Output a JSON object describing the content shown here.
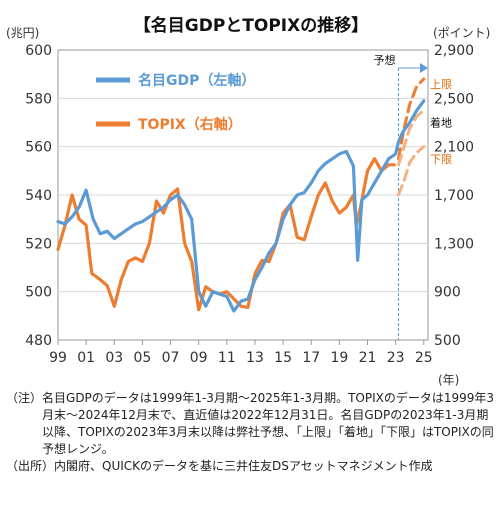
{
  "chart_data": {
    "type": "line",
    "title": "【名目GDPとTOPIXの推移】",
    "left_axis": {
      "unit_label": "(兆円)",
      "ylim": [
        480,
        600
      ],
      "ticks": [
        480,
        500,
        520,
        540,
        560,
        580,
        600
      ]
    },
    "right_axis": {
      "unit_label": "(ポイント)",
      "ylim": [
        500,
        2900
      ],
      "ticks": [
        500,
        900,
        1300,
        1700,
        2100,
        2500,
        2900
      ],
      "tick_labels": [
        "500",
        "900",
        "1,300",
        "1,700",
        "2,100",
        "2,500",
        "2,900"
      ]
    },
    "x_axis": {
      "unit_label": "(年)",
      "xlim": [
        1999,
        2025.3
      ],
      "ticks": [
        "99",
        "01",
        "03",
        "05",
        "07",
        "09",
        "11",
        "13",
        "15",
        "17",
        "19",
        "21",
        "23",
        "25"
      ]
    },
    "forecast_start": 2023.2,
    "forecast_label": "予想",
    "series": [
      {
        "name": "名目GDP（左軸）",
        "axis": "left",
        "color": "#5B9BD5",
        "points": [
          [
            1999.0,
            529
          ],
          [
            1999.5,
            528
          ],
          [
            2000.0,
            531
          ],
          [
            2000.5,
            535
          ],
          [
            2001.0,
            542
          ],
          [
            2001.5,
            530
          ],
          [
            2002.0,
            524
          ],
          [
            2002.5,
            525
          ],
          [
            2003.0,
            522
          ],
          [
            2003.5,
            524
          ],
          [
            2004.0,
            526
          ],
          [
            2004.5,
            528
          ],
          [
            2005.0,
            529
          ],
          [
            2005.5,
            531
          ],
          [
            2006.0,
            533
          ],
          [
            2006.5,
            535
          ],
          [
            2007.0,
            538
          ],
          [
            2007.5,
            540
          ],
          [
            2008.0,
            536
          ],
          [
            2008.5,
            530
          ],
          [
            2009.0,
            500
          ],
          [
            2009.5,
            494
          ],
          [
            2010.0,
            500
          ],
          [
            2010.5,
            499
          ],
          [
            2011.0,
            498
          ],
          [
            2011.5,
            492
          ],
          [
            2012.0,
            496
          ],
          [
            2012.5,
            497
          ],
          [
            2013.0,
            505
          ],
          [
            2013.5,
            510
          ],
          [
            2014.0,
            516
          ],
          [
            2014.5,
            520
          ],
          [
            2015.0,
            530
          ],
          [
            2015.5,
            536
          ],
          [
            2016.0,
            540
          ],
          [
            2016.5,
            541
          ],
          [
            2017.0,
            545
          ],
          [
            2017.5,
            550
          ],
          [
            2018.0,
            553
          ],
          [
            2018.5,
            555
          ],
          [
            2019.0,
            557
          ],
          [
            2019.5,
            558
          ],
          [
            2020.0,
            552
          ],
          [
            2020.3,
            513
          ],
          [
            2020.6,
            538
          ],
          [
            2021.0,
            540
          ],
          [
            2021.5,
            545
          ],
          [
            2022.0,
            550
          ],
          [
            2022.5,
            555
          ],
          [
            2023.0,
            557
          ],
          [
            2023.2,
            562
          ],
          [
            2023.5,
            566
          ],
          [
            2024.0,
            570
          ],
          [
            2024.5,
            575
          ],
          [
            2025.0,
            579
          ]
        ]
      },
      {
        "name": "TOPIX（右軸）",
        "axis": "right",
        "color": "#ED7D31",
        "points": [
          [
            1999.0,
            1250
          ],
          [
            1999.5,
            1450
          ],
          [
            2000.0,
            1700
          ],
          [
            2000.5,
            1500
          ],
          [
            2001.0,
            1450
          ],
          [
            2001.4,
            1050
          ],
          [
            2002.0,
            1000
          ],
          [
            2002.5,
            950
          ],
          [
            2003.0,
            780
          ],
          [
            2003.5,
            1000
          ],
          [
            2004.0,
            1150
          ],
          [
            2004.5,
            1180
          ],
          [
            2005.0,
            1150
          ],
          [
            2005.5,
            1300
          ],
          [
            2006.0,
            1650
          ],
          [
            2006.5,
            1550
          ],
          [
            2007.0,
            1700
          ],
          [
            2007.5,
            1750
          ],
          [
            2008.0,
            1300
          ],
          [
            2008.5,
            1150
          ],
          [
            2009.0,
            750
          ],
          [
            2009.5,
            940
          ],
          [
            2010.0,
            900
          ],
          [
            2010.5,
            880
          ],
          [
            2011.0,
            900
          ],
          [
            2011.5,
            840
          ],
          [
            2012.0,
            780
          ],
          [
            2012.5,
            770
          ],
          [
            2013.0,
            1050
          ],
          [
            2013.5,
            1160
          ],
          [
            2014.0,
            1150
          ],
          [
            2014.5,
            1300
          ],
          [
            2015.0,
            1550
          ],
          [
            2015.5,
            1620
          ],
          [
            2016.0,
            1350
          ],
          [
            2016.5,
            1330
          ],
          [
            2017.0,
            1520
          ],
          [
            2017.5,
            1700
          ],
          [
            2018.0,
            1800
          ],
          [
            2018.5,
            1650
          ],
          [
            2019.0,
            1550
          ],
          [
            2019.5,
            1600
          ],
          [
            2020.0,
            1700
          ],
          [
            2020.2,
            1450
          ],
          [
            2020.5,
            1600
          ],
          [
            2021.0,
            1900
          ],
          [
            2021.5,
            2000
          ],
          [
            2022.0,
            1900
          ],
          [
            2022.5,
            1950
          ],
          [
            2022.9,
            1950
          ]
        ]
      },
      {
        "name": "上限",
        "axis": "right",
        "color": "#ED7D31",
        "dashed": true,
        "points": [
          [
            2023.2,
            2000
          ],
          [
            2023.6,
            2250
          ],
          [
            2024.0,
            2450
          ],
          [
            2024.5,
            2600
          ],
          [
            2025.0,
            2660
          ]
        ]
      },
      {
        "name": "着地",
        "axis": "right",
        "color": "#F4B183",
        "dashed": true,
        "points": [
          [
            2023.2,
            1950
          ],
          [
            2023.6,
            2100
          ],
          [
            2024.0,
            2250
          ],
          [
            2024.5,
            2350
          ],
          [
            2025.0,
            2400
          ]
        ]
      },
      {
        "name": "下限",
        "axis": "right",
        "color": "#F4B183",
        "dashed": true,
        "points": [
          [
            2023.2,
            1700
          ],
          [
            2023.6,
            1820
          ],
          [
            2024.0,
            1970
          ],
          [
            2024.5,
            2050
          ],
          [
            2025.0,
            2100
          ]
        ]
      }
    ],
    "right_annotations": [
      {
        "label": "上限",
        "value": 2620
      },
      {
        "label": "着地",
        "value": 2300
      },
      {
        "label": "下限",
        "value": 2000
      }
    ]
  },
  "notes": [
    {
      "label": "（注）",
      "text": "名目GDPのデータは1999年1-3月期～2025年1-3月期。TOPIXのデータは1999年3月末～2024年12月末で、直近値は2022年12月31日。名目GDPの2023年1-3月期以降、TOPIXの2023年3月末以降は弊社予想、「上限」「着地」「下限」はTOPIXの同予想レンジ。"
    },
    {
      "label": "（出所）",
      "text": "内閣府、QUICKのデータを基に三井住友DSアセットマネジメント作成"
    }
  ]
}
